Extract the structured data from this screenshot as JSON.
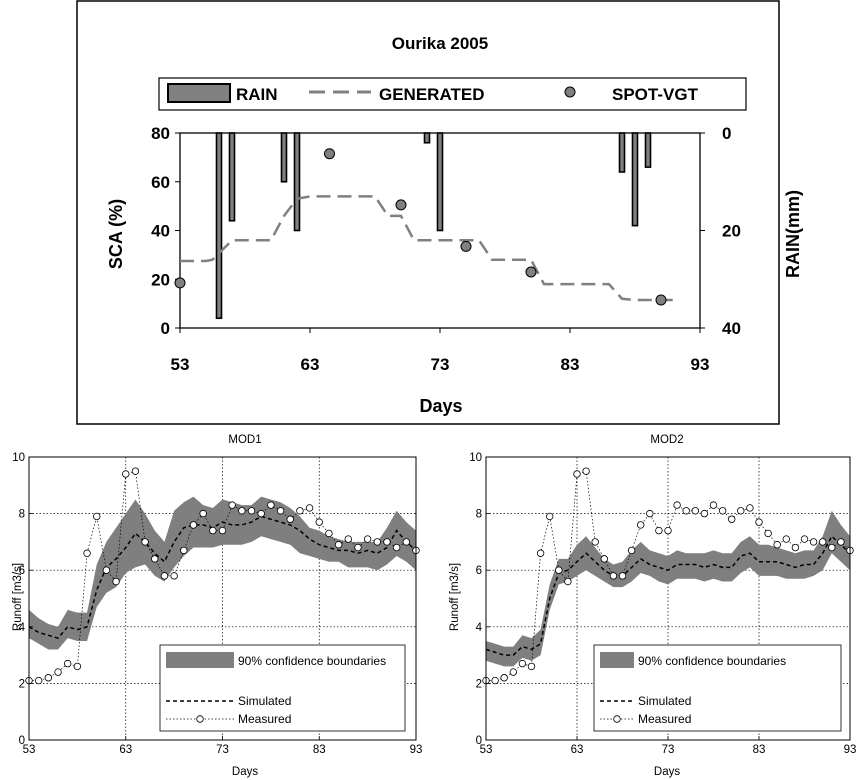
{
  "chart_data": [
    {
      "type": "bar",
      "title": "Ourika 2005",
      "xlabel": "Days",
      "ylabel": "SCA (%)",
      "y2label": "RAIN(mm)",
      "xlim": [
        53,
        93
      ],
      "xticks": [
        53,
        63,
        73,
        83,
        93
      ],
      "ylim": [
        0,
        80
      ],
      "yticks": [
        0,
        20,
        40,
        60,
        80
      ],
      "y2lim": [
        0,
        40
      ],
      "y2ticks": [
        0,
        20,
        40
      ],
      "y2_inverted": true,
      "legend_position": "top",
      "colors": {
        "rain": "#808080",
        "generated": "#808080",
        "spot": "#808080",
        "frame": "#000000"
      },
      "series": [
        {
          "name": "RAIN",
          "type": "bar",
          "axis": "y2",
          "x": [
            56,
            57,
            61,
            62,
            72,
            73,
            87,
            88,
            89
          ],
          "values": [
            38,
            18,
            10,
            20,
            2,
            20,
            8,
            19,
            7
          ]
        },
        {
          "name": "GENERATED",
          "type": "line",
          "style": "dashed",
          "x": [
            53,
            55,
            55.5,
            57,
            58,
            60,
            61,
            62,
            63,
            68,
            69,
            70,
            71,
            72,
            76,
            77,
            80,
            81,
            86,
            87,
            88,
            91
          ],
          "values": [
            27.5,
            27.5,
            28,
            36,
            36,
            36,
            46,
            53,
            54,
            54,
            46,
            46,
            36,
            36,
            36,
            28,
            28,
            18,
            18,
            12,
            11.5,
            11.5
          ]
        },
        {
          "name": "SPOT-VGT",
          "type": "scatter",
          "x": [
            53,
            64.5,
            70,
            75,
            80,
            90
          ],
          "values": [
            18.5,
            71.5,
            50.5,
            33.5,
            23,
            11.5
          ]
        }
      ]
    },
    {
      "type": "area",
      "title": "MOD1",
      "xlabel": "Days",
      "ylabel": "Runoff [m3/s]",
      "xlim": [
        53,
        93
      ],
      "xticks": [
        53,
        63,
        73,
        83,
        93
      ],
      "ylim": [
        0,
        10
      ],
      "yticks": [
        0,
        2,
        4,
        6,
        8,
        10
      ],
      "grid": true,
      "legend_position": "bottom-right",
      "legend_entries": [
        "90% confidence boundaries",
        "Simulated",
        "Measured"
      ],
      "x": [
        53,
        54,
        55,
        56,
        57,
        58,
        59,
        60,
        61,
        62,
        63,
        64,
        65,
        66,
        67,
        68,
        69,
        70,
        71,
        72,
        73,
        74,
        75,
        76,
        77,
        78,
        79,
        80,
        81,
        82,
        83,
        84,
        85,
        86,
        87,
        88,
        89,
        90,
        91,
        92,
        93
      ],
      "series": [
        {
          "name": "90% confidence boundaries",
          "type": "band",
          "lower": [
            3.6,
            3.4,
            3.2,
            3.2,
            3.6,
            3.5,
            3.5,
            4.7,
            5.2,
            5.4,
            5.9,
            6.1,
            6.2,
            5.8,
            5.6,
            6.1,
            6.5,
            6.8,
            6.8,
            6.8,
            6.9,
            6.9,
            6.9,
            7.0,
            7.2,
            7.1,
            7.0,
            6.9,
            6.6,
            6.5,
            6.4,
            6.3,
            6.3,
            6.1,
            6.1,
            6.1,
            6.0,
            6.2,
            6.5,
            6.3,
            6.0
          ],
          "upper": [
            4.6,
            4.3,
            4.1,
            4.0,
            4.6,
            4.5,
            4.5,
            6.2,
            7.0,
            7.5,
            8.0,
            8.5,
            8.0,
            7.4,
            7.0,
            8.1,
            8.4,
            8.6,
            8.3,
            8.2,
            8.5,
            8.4,
            8.3,
            8.3,
            8.6,
            8.5,
            8.4,
            8.2,
            7.9,
            7.5,
            7.4,
            7.2,
            7.1,
            7.0,
            7.0,
            7.0,
            7.0,
            7.5,
            8.1,
            7.7,
            7.4
          ]
        },
        {
          "name": "Simulated",
          "type": "line",
          "style": "dashed",
          "values": [
            4.0,
            3.8,
            3.7,
            3.6,
            4.0,
            3.9,
            4.0,
            5.3,
            6.1,
            6.4,
            6.8,
            7.3,
            7.0,
            6.6,
            6.3,
            7.0,
            7.5,
            7.6,
            7.6,
            7.5,
            7.7,
            7.6,
            7.6,
            7.7,
            7.9,
            7.8,
            7.7,
            7.6,
            7.4,
            7.1,
            6.9,
            6.8,
            6.7,
            6.7,
            6.6,
            6.7,
            6.6,
            6.8,
            7.4,
            7.0,
            6.7
          ]
        },
        {
          "name": "Measured",
          "type": "line",
          "style": "dotted",
          "marker": "open-circle",
          "values": [
            2.1,
            2.1,
            2.2,
            2.4,
            2.7,
            2.6,
            6.6,
            7.9,
            6.0,
            5.6,
            9.4,
            9.5,
            7.0,
            6.4,
            5.8,
            5.8,
            6.7,
            7.6,
            8.0,
            7.4,
            7.4,
            8.3,
            8.1,
            8.1,
            8.0,
            8.3,
            8.1,
            7.8,
            8.1,
            8.2,
            7.7,
            7.3,
            6.9,
            7.1,
            6.8,
            7.1,
            7.0,
            7.0,
            6.8,
            7.0,
            6.7
          ]
        }
      ]
    },
    {
      "type": "area",
      "title": "MOD2",
      "xlabel": "Days",
      "ylabel": "Runoff [m3/s]",
      "xlim": [
        53,
        93
      ],
      "xticks": [
        53,
        63,
        73,
        83,
        93
      ],
      "ylim": [
        0,
        10
      ],
      "yticks": [
        0,
        2,
        4,
        6,
        8,
        10
      ],
      "grid": true,
      "legend_position": "bottom-right",
      "legend_entries": [
        "90% confidence boundaries",
        "Simulated",
        "Measured"
      ],
      "x": [
        53,
        54,
        55,
        56,
        57,
        58,
        59,
        60,
        61,
        62,
        63,
        64,
        65,
        66,
        67,
        68,
        69,
        70,
        71,
        72,
        73,
        74,
        75,
        76,
        77,
        78,
        79,
        80,
        81,
        82,
        83,
        84,
        85,
        86,
        87,
        88,
        89,
        90,
        91,
        92,
        93
      ],
      "series": [
        {
          "name": "90% confidence boundaries",
          "type": "band",
          "lower": [
            2.8,
            2.7,
            2.6,
            2.6,
            2.9,
            2.8,
            3.0,
            4.6,
            5.5,
            5.6,
            5.8,
            6.0,
            5.8,
            5.6,
            5.4,
            5.4,
            5.6,
            5.9,
            5.8,
            5.6,
            5.5,
            5.7,
            5.7,
            5.7,
            5.6,
            5.7,
            5.6,
            5.6,
            5.9,
            6.1,
            5.8,
            5.8,
            5.8,
            5.7,
            5.7,
            5.7,
            5.8,
            6.0,
            6.6,
            6.3,
            6.0
          ],
          "upper": [
            3.5,
            3.4,
            3.3,
            3.3,
            3.7,
            3.6,
            3.9,
            5.5,
            6.4,
            6.4,
            6.9,
            7.2,
            6.8,
            6.4,
            6.2,
            6.3,
            6.7,
            7.0,
            6.7,
            6.6,
            6.5,
            6.7,
            6.6,
            6.6,
            6.6,
            6.7,
            6.6,
            6.6,
            7.0,
            7.2,
            6.9,
            6.9,
            6.8,
            6.7,
            6.6,
            6.7,
            6.7,
            7.2,
            8.1,
            7.6,
            7.2
          ]
        },
        {
          "name": "Simulated",
          "type": "line",
          "style": "dashed",
          "values": [
            3.2,
            3.1,
            3.0,
            3.0,
            3.3,
            3.2,
            3.4,
            5.0,
            5.9,
            6.0,
            6.3,
            6.6,
            6.3,
            6.0,
            5.8,
            5.8,
            6.1,
            6.4,
            6.2,
            6.1,
            6.0,
            6.2,
            6.2,
            6.2,
            6.1,
            6.2,
            6.1,
            6.1,
            6.5,
            6.6,
            6.3,
            6.3,
            6.3,
            6.2,
            6.1,
            6.2,
            6.2,
            6.6,
            7.2,
            6.9,
            6.6
          ]
        },
        {
          "name": "Measured",
          "type": "line",
          "style": "dotted",
          "marker": "open-circle",
          "values": [
            2.1,
            2.1,
            2.2,
            2.4,
            2.7,
            2.6,
            6.6,
            7.9,
            6.0,
            5.6,
            9.4,
            9.5,
            7.0,
            6.4,
            5.8,
            5.8,
            6.7,
            7.6,
            8.0,
            7.4,
            7.4,
            8.3,
            8.1,
            8.1,
            8.0,
            8.3,
            8.1,
            7.8,
            8.1,
            8.2,
            7.7,
            7.3,
            6.9,
            7.1,
            6.8,
            7.1,
            7.0,
            7.0,
            6.8,
            7.0,
            6.7
          ]
        }
      ]
    }
  ]
}
